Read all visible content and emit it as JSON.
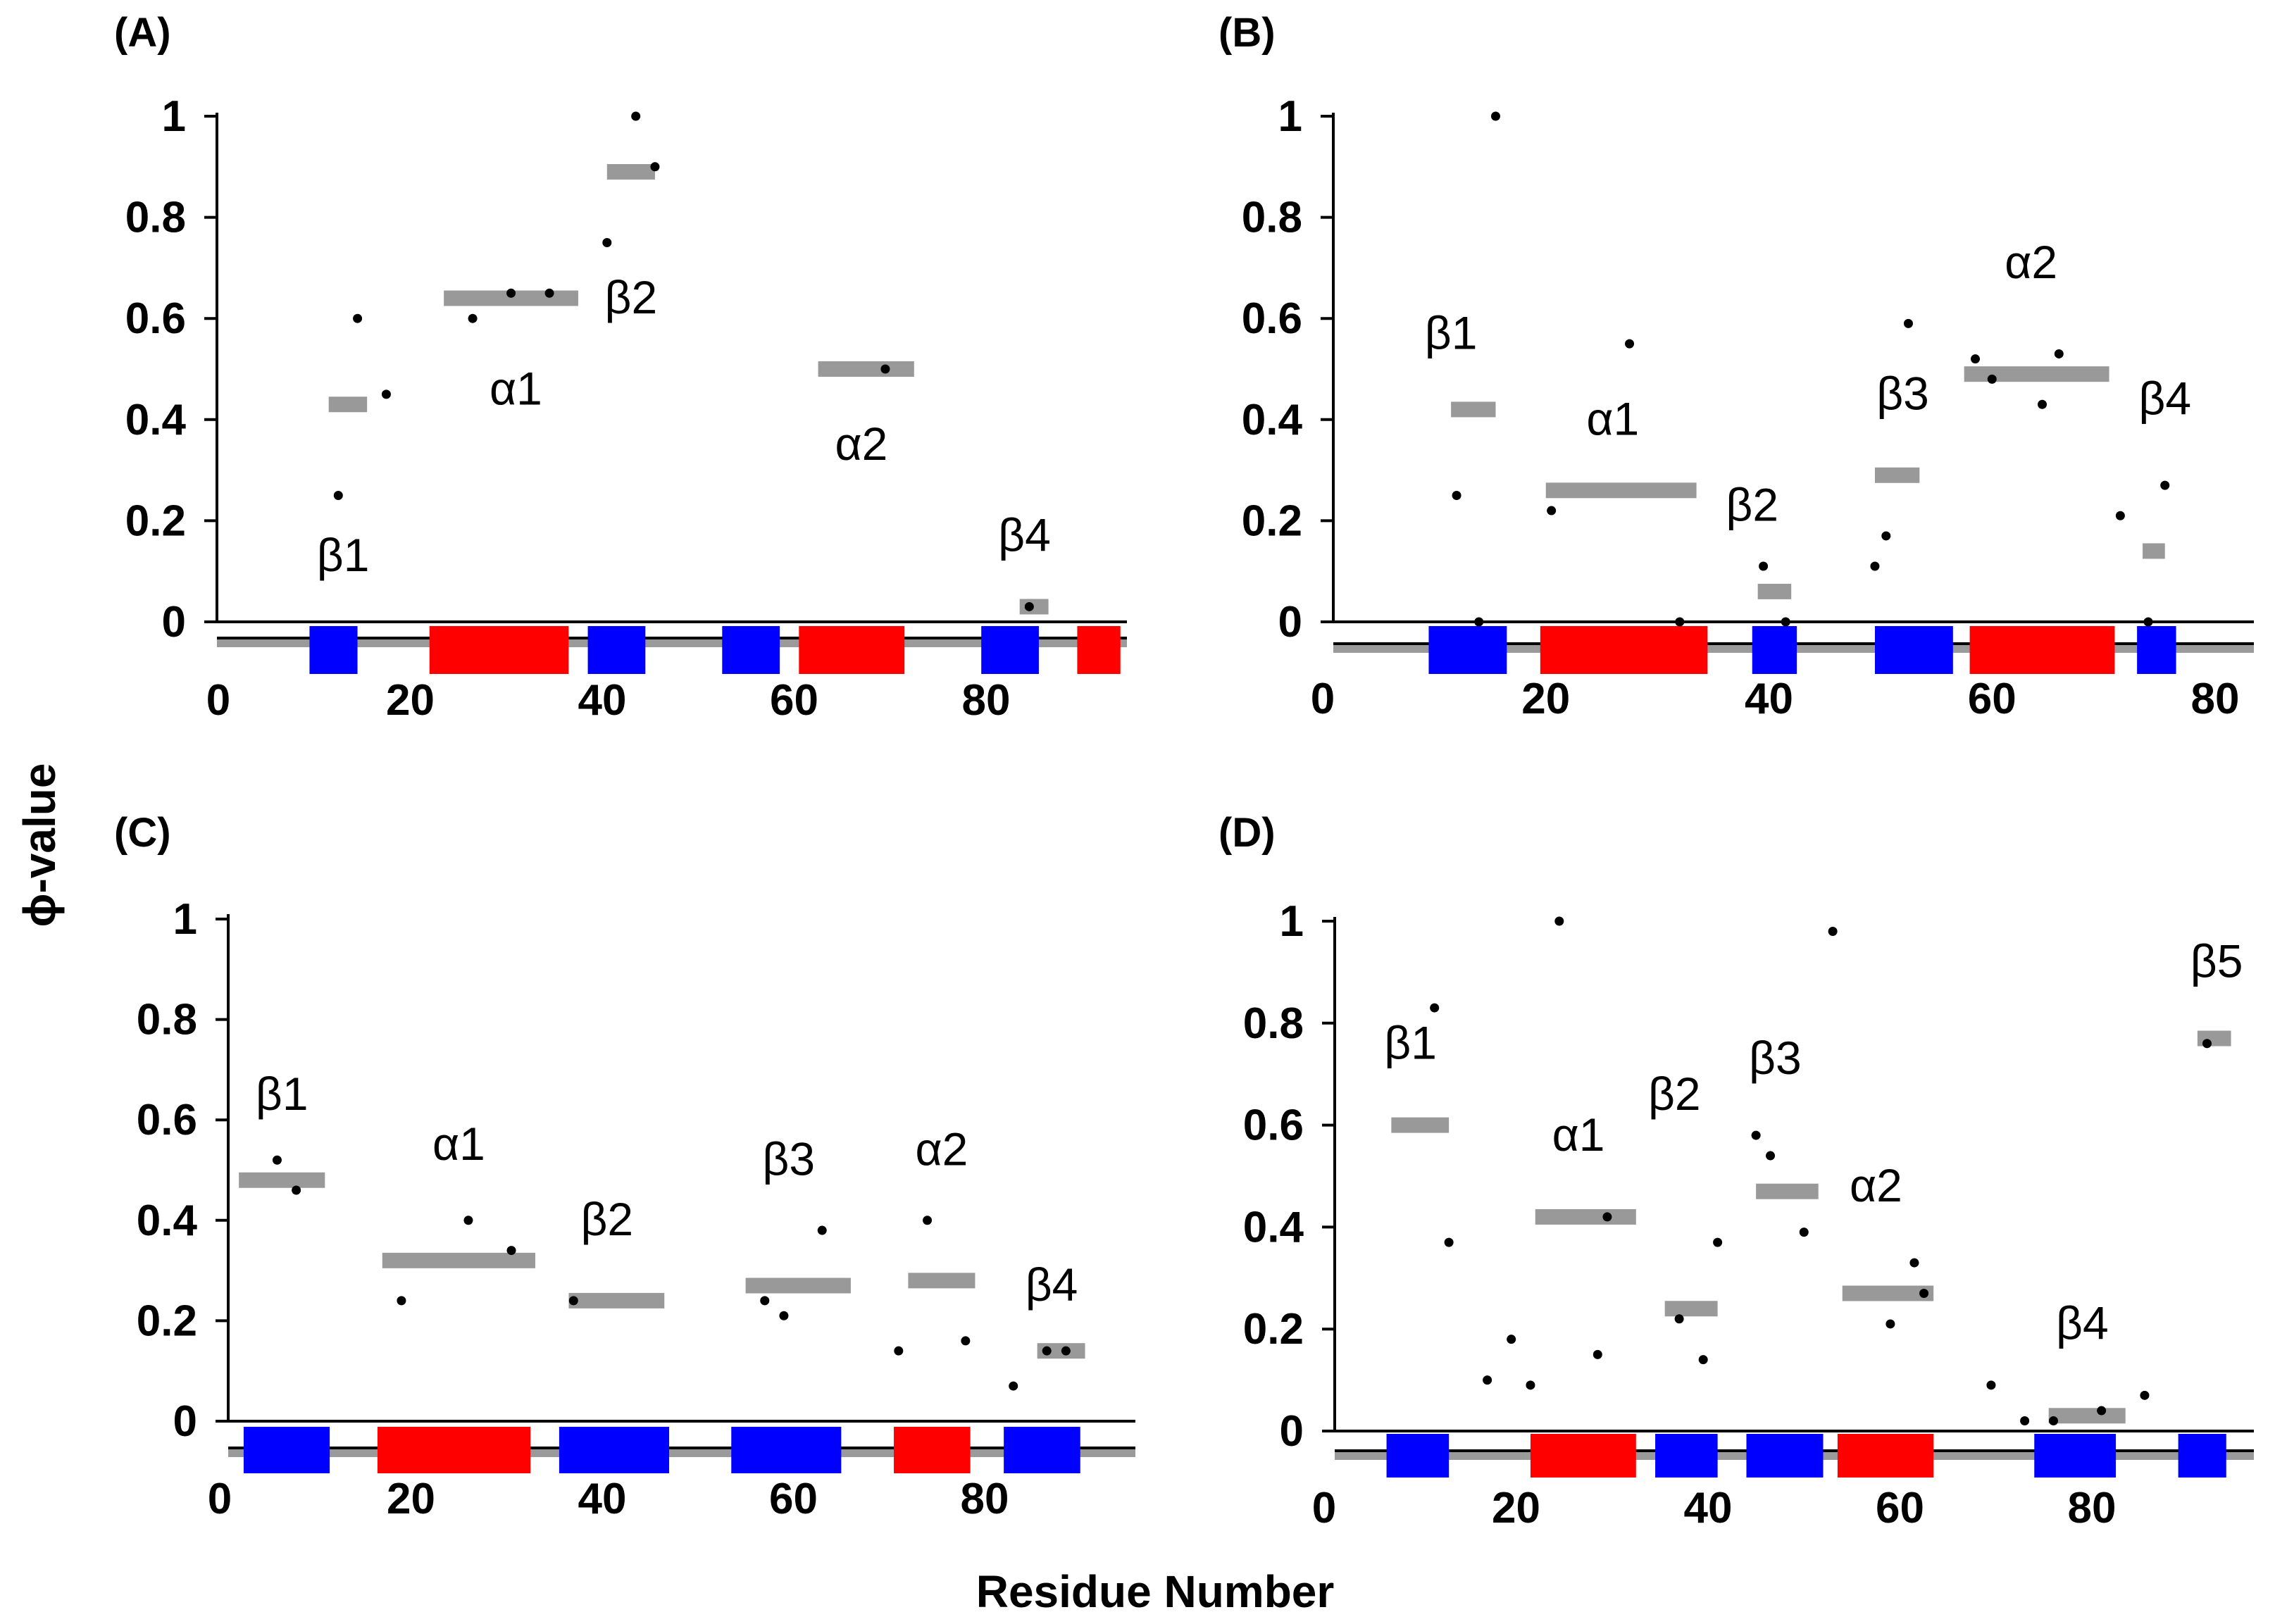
{
  "figure": {
    "xlabel": "Residue Number",
    "ylabel": "ϕ-value"
  },
  "colors": {
    "helix": "#ff0000",
    "strand": "#0000ff",
    "bar": "#999999",
    "point": "#000000",
    "axis": "#000000",
    "baseline_shadow": "#9a9a9a"
  },
  "chart_data": [
    {
      "panel": "(A)",
      "type": "scatter",
      "xlabel": "Residue Number",
      "ylabel": "ϕ-value",
      "xlim": [
        0,
        95
      ],
      "ylim": [
        0,
        1
      ],
      "xticks": [
        0,
        20,
        40,
        60,
        80
      ],
      "yticks": [
        0,
        0.2,
        0.4,
        0.6,
        0.8,
        1
      ],
      "xtick_labels": [
        "0",
        "20",
        "40",
        "60",
        "80"
      ],
      "ytick_labels": [
        "0",
        "0.2",
        "0.4",
        "0.6",
        "0.8",
        "1"
      ],
      "points": [
        {
          "x": 12.5,
          "y": 0.25
        },
        {
          "x": 14.5,
          "y": 0.6
        },
        {
          "x": 17.5,
          "y": 0.45
        },
        {
          "x": 26.5,
          "y": 0.6
        },
        {
          "x": 30.5,
          "y": 0.65
        },
        {
          "x": 34.5,
          "y": 0.65
        },
        {
          "x": 40.5,
          "y": 0.75
        },
        {
          "x": 43.5,
          "y": 1.0
        },
        {
          "x": 45.5,
          "y": 0.9
        },
        {
          "x": 69.5,
          "y": 0.5
        },
        {
          "x": 84.5,
          "y": 0.03
        }
      ],
      "mean_bars": [
        {
          "x0": 11.5,
          "x1": 15.5,
          "y": 0.43
        },
        {
          "x0": 23.5,
          "x1": 37.5,
          "y": 0.64
        },
        {
          "x0": 40.5,
          "x1": 45.5,
          "y": 0.89
        },
        {
          "x0": 62.5,
          "x1": 72.5,
          "y": 0.5
        },
        {
          "x0": 83.5,
          "x1": 86.5,
          "y": 0.03
        }
      ],
      "ss_labels": [
        {
          "text": "β1",
          "x": 13,
          "y": 0.1
        },
        {
          "text": "α1",
          "x": 31,
          "y": 0.43
        },
        {
          "text": "β2",
          "x": 43,
          "y": 0.61
        },
        {
          "text": "α2",
          "x": 67,
          "y": 0.32
        },
        {
          "text": "β4",
          "x": 84,
          "y": 0.14
        }
      ],
      "ss_elements": [
        {
          "type": "strand",
          "start": 9.5,
          "end": 14.5
        },
        {
          "type": "helix",
          "start": 22,
          "end": 36.5
        },
        {
          "type": "strand",
          "start": 38.5,
          "end": 44.5
        },
        {
          "type": "strand",
          "start": 52.5,
          "end": 58.5
        },
        {
          "type": "helix",
          "start": 60.5,
          "end": 71.5
        },
        {
          "type": "strand",
          "start": 79.5,
          "end": 85.5
        },
        {
          "type": "helix",
          "start": 89.5,
          "end": 94
        }
      ]
    },
    {
      "panel": "(B)",
      "type": "scatter",
      "xlabel": "Residue Number",
      "ylabel": "ϕ-value",
      "xlim": [
        0,
        80
      ],
      "ylim": [
        0,
        1
      ],
      "xticks": [
        0,
        20,
        40,
        60,
        80
      ],
      "yticks": [
        0,
        0.2,
        0.4,
        0.6,
        0.8,
        1
      ],
      "xtick_labels": [
        "0",
        "20",
        "40",
        "60",
        "80"
      ],
      "ytick_labels": [
        "0",
        "0.2",
        "0.4",
        "0.6",
        "0.8",
        "1"
      ],
      "points": [
        {
          "x": 12,
          "y": 0.25
        },
        {
          "x": 14,
          "y": 0.0
        },
        {
          "x": 15.5,
          "y": 1.0
        },
        {
          "x": 20.5,
          "y": 0.22
        },
        {
          "x": 27.5,
          "y": 0.55
        },
        {
          "x": 32,
          "y": 0.0
        },
        {
          "x": 39.5,
          "y": 0.11
        },
        {
          "x": 41.5,
          "y": 0.0
        },
        {
          "x": 49.5,
          "y": 0.11
        },
        {
          "x": 50.5,
          "y": 0.17
        },
        {
          "x": 52.5,
          "y": 0.59
        },
        {
          "x": 58.5,
          "y": 0.52
        },
        {
          "x": 60,
          "y": 0.48
        },
        {
          "x": 64.5,
          "y": 0.43
        },
        {
          "x": 66,
          "y": 0.53
        },
        {
          "x": 71.5,
          "y": 0.21
        },
        {
          "x": 74,
          "y": 0.0
        },
        {
          "x": 75.5,
          "y": 0.27
        }
      ],
      "mean_bars": [
        {
          "x0": 11.5,
          "x1": 15.5,
          "y": 0.42
        },
        {
          "x0": 20,
          "x1": 33.5,
          "y": 0.26
        },
        {
          "x0": 39,
          "x1": 42,
          "y": 0.06
        },
        {
          "x0": 49.5,
          "x1": 53.5,
          "y": 0.29
        },
        {
          "x0": 57.5,
          "x1": 70.5,
          "y": 0.49
        },
        {
          "x0": 73.5,
          "x1": 75.5,
          "y": 0.14
        }
      ],
      "ss_labels": [
        {
          "text": "β1",
          "x": 11.5,
          "y": 0.54
        },
        {
          "text": "α1",
          "x": 26,
          "y": 0.37
        },
        {
          "text": "β2",
          "x": 38.5,
          "y": 0.2
        },
        {
          "text": "β3",
          "x": 52,
          "y": 0.42
        },
        {
          "text": "α2",
          "x": 63.5,
          "y": 0.68
        },
        {
          "text": "β4",
          "x": 75.5,
          "y": 0.41
        }
      ],
      "ss_elements": [
        {
          "type": "strand",
          "start": 9.5,
          "end": 16.5
        },
        {
          "type": "helix",
          "start": 19.5,
          "end": 34.5
        },
        {
          "type": "strand",
          "start": 38.5,
          "end": 42.5
        },
        {
          "type": "strand",
          "start": 49.5,
          "end": 56.5
        },
        {
          "type": "helix",
          "start": 58,
          "end": 71
        },
        {
          "type": "strand",
          "start": 73,
          "end": 76.5
        }
      ]
    },
    {
      "panel": "(C)",
      "type": "scatter",
      "xlabel": "Residue Number",
      "ylabel": "ϕ-value",
      "xlim": [
        0,
        95
      ],
      "ylim": [
        0,
        1
      ],
      "xticks": [
        0,
        20,
        40,
        60,
        80
      ],
      "yticks": [
        0,
        0.2,
        0.4,
        0.6,
        0.8,
        1
      ],
      "xtick_labels": [
        "0",
        "20",
        "40",
        "60",
        "80"
      ],
      "ytick_labels": [
        "0",
        "0.2",
        "0.4",
        "0.6",
        "0.8",
        "1"
      ],
      "points": [
        {
          "x": 6,
          "y": 0.52
        },
        {
          "x": 8,
          "y": 0.46
        },
        {
          "x": 19,
          "y": 0.24
        },
        {
          "x": 26,
          "y": 0.4
        },
        {
          "x": 30.5,
          "y": 0.34
        },
        {
          "x": 37,
          "y": 0.24
        },
        {
          "x": 57,
          "y": 0.24
        },
        {
          "x": 59,
          "y": 0.21
        },
        {
          "x": 63,
          "y": 0.38
        },
        {
          "x": 71,
          "y": 0.14
        },
        {
          "x": 74,
          "y": 0.4
        },
        {
          "x": 78,
          "y": 0.16
        },
        {
          "x": 83,
          "y": 0.07
        },
        {
          "x": 86.5,
          "y": 0.14
        },
        {
          "x": 88.5,
          "y": 0.14
        }
      ],
      "mean_bars": [
        {
          "x0": 2,
          "x1": 11,
          "y": 0.48
        },
        {
          "x0": 17,
          "x1": 33,
          "y": 0.32
        },
        {
          "x0": 36.5,
          "x1": 46.5,
          "y": 0.24
        },
        {
          "x0": 55,
          "x1": 66,
          "y": 0.27
        },
        {
          "x0": 72,
          "x1": 79,
          "y": 0.28
        },
        {
          "x0": 85.5,
          "x1": 90.5,
          "y": 0.14
        }
      ],
      "ss_labels": [
        {
          "text": "β1",
          "x": 6.5,
          "y": 0.62
        },
        {
          "text": "α1",
          "x": 25,
          "y": 0.52
        },
        {
          "text": "β2",
          "x": 40.5,
          "y": 0.37
        },
        {
          "text": "β3",
          "x": 59.5,
          "y": 0.49
        },
        {
          "text": "α2",
          "x": 75.5,
          "y": 0.51
        },
        {
          "text": "β4",
          "x": 87,
          "y": 0.24
        }
      ],
      "ss_elements": [
        {
          "type": "strand",
          "start": 2.5,
          "end": 11.5
        },
        {
          "type": "helix",
          "start": 16.5,
          "end": 32.5
        },
        {
          "type": "strand",
          "start": 35.5,
          "end": 47
        },
        {
          "type": "strand",
          "start": 53.5,
          "end": 65
        },
        {
          "type": "helix",
          "start": 70.5,
          "end": 78.5
        },
        {
          "type": "strand",
          "start": 82,
          "end": 90
        }
      ]
    },
    {
      "panel": "(D)",
      "type": "scatter",
      "xlabel": "Residue Number",
      "ylabel": "ϕ-value",
      "xlim": [
        0,
        95
      ],
      "ylim": [
        0,
        1
      ],
      "xticks": [
        0,
        20,
        40,
        60,
        80
      ],
      "yticks": [
        0,
        0.2,
        0.4,
        0.6,
        0.8,
        1
      ],
      "xtick_labels": [
        "0",
        "20",
        "40",
        "60",
        "80"
      ],
      "ytick_labels": [
        "0",
        "0.2",
        "0.4",
        "0.6",
        "0.8",
        "1"
      ],
      "points": [
        {
          "x": 11.5,
          "y": 0.83
        },
        {
          "x": 13,
          "y": 0.37
        },
        {
          "x": 17,
          "y": 0.1
        },
        {
          "x": 19.5,
          "y": 0.18
        },
        {
          "x": 21.5,
          "y": 0.09
        },
        {
          "x": 24.5,
          "y": 1.0
        },
        {
          "x": 28.5,
          "y": 0.15
        },
        {
          "x": 29.5,
          "y": 0.42
        },
        {
          "x": 37,
          "y": 0.22
        },
        {
          "x": 39.5,
          "y": 0.14
        },
        {
          "x": 41,
          "y": 0.37
        },
        {
          "x": 45,
          "y": 0.58
        },
        {
          "x": 46.5,
          "y": 0.54
        },
        {
          "x": 50,
          "y": 0.39
        },
        {
          "x": 53,
          "y": 0.98
        },
        {
          "x": 59,
          "y": 0.21
        },
        {
          "x": 61.5,
          "y": 0.33
        },
        {
          "x": 62.5,
          "y": 0.27
        },
        {
          "x": 69.5,
          "y": 0.09
        },
        {
          "x": 73,
          "y": 0.02
        },
        {
          "x": 76,
          "y": 0.02
        },
        {
          "x": 81,
          "y": 0.04
        },
        {
          "x": 85.5,
          "y": 0.07
        },
        {
          "x": 92,
          "y": 0.76
        }
      ],
      "mean_bars": [
        {
          "x0": 7,
          "x1": 13,
          "y": 0.6
        },
        {
          "x0": 22,
          "x1": 32.5,
          "y": 0.42
        },
        {
          "x0": 35.5,
          "x1": 41,
          "y": 0.24
        },
        {
          "x0": 45,
          "x1": 51.5,
          "y": 0.47
        },
        {
          "x0": 54,
          "x1": 63.5,
          "y": 0.27
        },
        {
          "x0": 75.5,
          "x1": 83.5,
          "y": 0.03
        },
        {
          "x0": 91,
          "x1": 94.5,
          "y": 0.77
        }
      ],
      "ss_labels": [
        {
          "text": "β1",
          "x": 9,
          "y": 0.73
        },
        {
          "text": "α1",
          "x": 26.5,
          "y": 0.55
        },
        {
          "text": "β2",
          "x": 36.5,
          "y": 0.63
        },
        {
          "text": "β3",
          "x": 47,
          "y": 0.7
        },
        {
          "text": "α2",
          "x": 57.5,
          "y": 0.45
        },
        {
          "text": "β4",
          "x": 79,
          "y": 0.18
        },
        {
          "text": "β5",
          "x": 93,
          "y": 0.89
        }
      ],
      "ss_elements": [
        {
          "type": "strand",
          "start": 6.5,
          "end": 13
        },
        {
          "type": "helix",
          "start": 21.5,
          "end": 32.5
        },
        {
          "type": "strand",
          "start": 34.5,
          "end": 41
        },
        {
          "type": "strand",
          "start": 44,
          "end": 52
        },
        {
          "type": "helix",
          "start": 53.5,
          "end": 63.5
        },
        {
          "type": "strand",
          "start": 74,
          "end": 82.5
        },
        {
          "type": "strand",
          "start": 89,
          "end": 94
        }
      ]
    }
  ]
}
